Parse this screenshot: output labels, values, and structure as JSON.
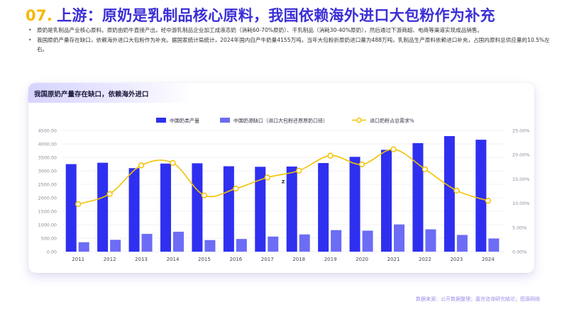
{
  "header": {
    "number": "07.",
    "title": "上游：原奶是乳制品核心原料，我国依赖海外进口大包粉作为补充"
  },
  "bullets": [
    {
      "text": "原奶是乳制品产业核心原料。原奶由奶牛直接产出，经中游乳制品企业加工成液态奶（消耗60-70%原奶）、干乳制品（消耗30-40%原奶），然后通过下游商超、电商等渠道实现成品销售。"
    },
    {
      "text": "我国原奶产量存在缺口，依赖海外进口大包粉作为补充。据国家统计局统计，2024年国内自产牛奶量4155万吨，当年大包粉折原奶进口量为488万吨，乳制品生产原料依赖进口补充，占国内原料总供应量的10.5%左右。"
    }
  ],
  "card": {
    "title": "我国原奶产量存在缺口，依赖海外进口"
  },
  "footer": {
    "source": "数据来源：公开数据整理；嘉世咨询研究结论；图源网络"
  },
  "chart_data": {
    "type": "bar",
    "categories": [
      "2011",
      "2012",
      "2013",
      "2014",
      "2015",
      "2016",
      "2017",
      "2018",
      "2019",
      "2020",
      "2021",
      "2022",
      "2023",
      "2024"
    ],
    "series": [
      {
        "name": "中国奶类产量",
        "type": "bar",
        "axis": "left",
        "color": "#2f2ff0",
        "values": [
          3250,
          3300,
          3100,
          3270,
          3280,
          3170,
          3150,
          3160,
          3290,
          3520,
          3780,
          4030,
          4290,
          4155
        ]
      },
      {
        "name": "中国奶源缺口（进口大包粉还原原奶口径）",
        "type": "bar",
        "axis": "left",
        "color": "#6c6cf5",
        "values": [
          350,
          440,
          660,
          740,
          430,
          470,
          560,
          640,
          800,
          780,
          1010,
          830,
          620,
          488
        ]
      },
      {
        "name": "进口奶粉占总需求%",
        "type": "line",
        "axis": "right",
        "color": "#f2c200",
        "values": [
          9.8,
          11.9,
          17.8,
          18.3,
          11.6,
          13.0,
          15.3,
          16.7,
          19.8,
          18.0,
          21.1,
          17.0,
          12.6,
          10.5
        ]
      }
    ],
    "y_left": {
      "min": 0,
      "max": 4500,
      "ticks": [
        "0.00",
        "500.00",
        "1000.00",
        "1500.00",
        "2000.00",
        "2500.00",
        "3000.00",
        "3500.00",
        "4000.00",
        "4500.00"
      ]
    },
    "y_right": {
      "min": 0,
      "max": 25,
      "ticks": [
        "0.00%",
        "5.00%",
        "10.00%",
        "15.00%",
        "20.00%",
        "25.00%"
      ]
    },
    "annotation": "z",
    "grid": true,
    "legend": "top-center"
  }
}
